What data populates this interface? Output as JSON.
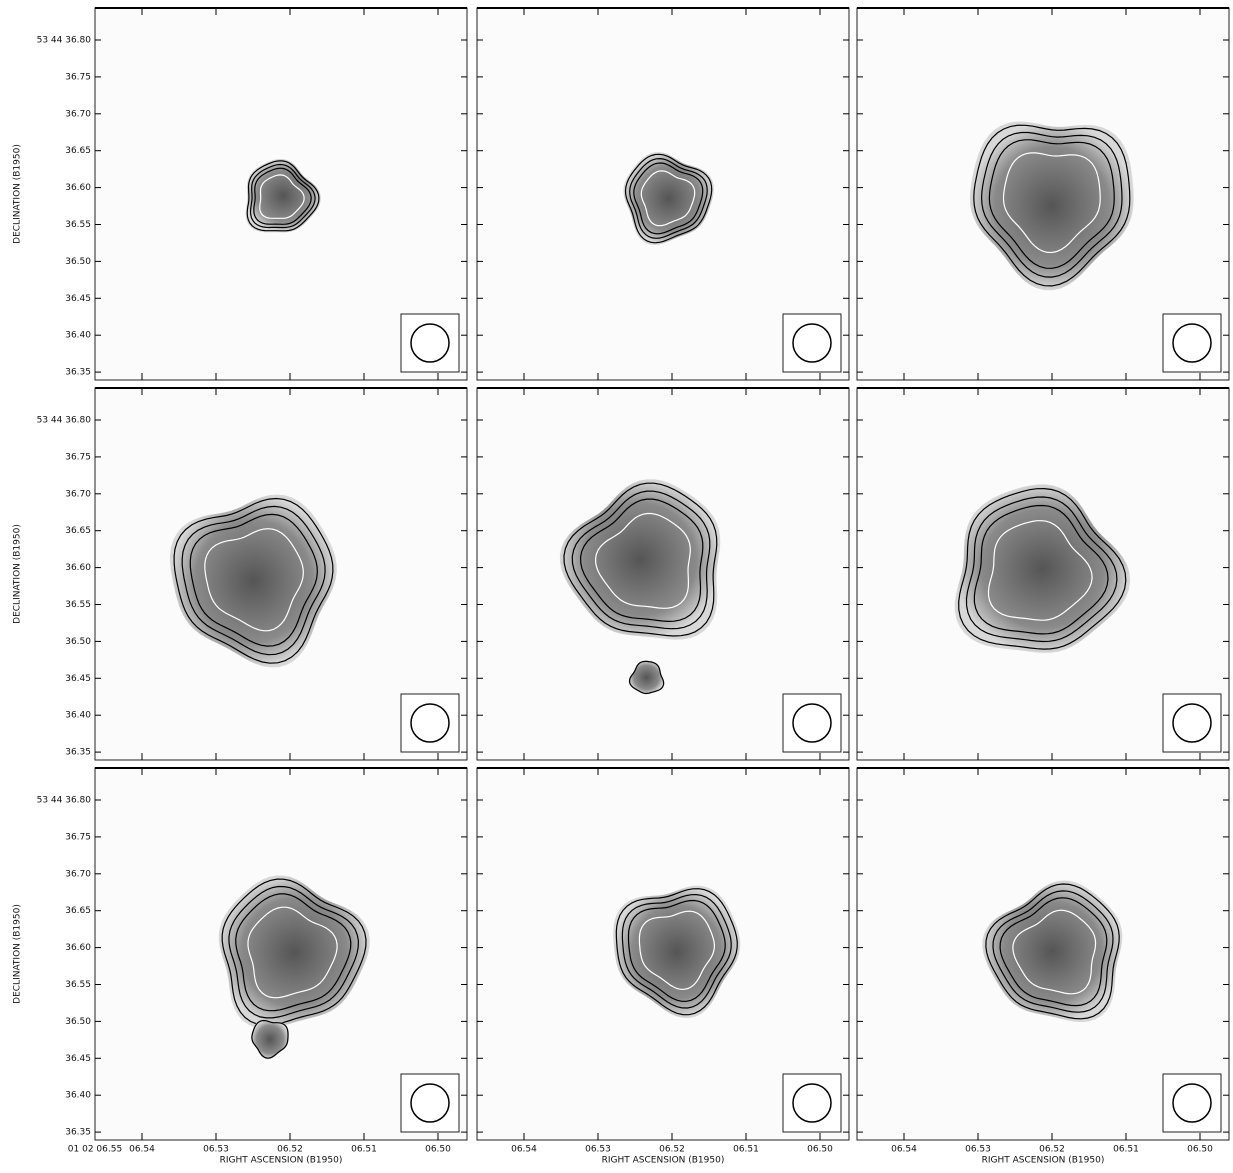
{
  "y_axis": {
    "label": "DECLINATION (B1950)",
    "ticks": [
      "53 44 36.80",
      "36.75",
      "36.70",
      "36.65",
      "36.60",
      "36.55",
      "36.50",
      "36.45",
      "36.40",
      "36.35"
    ]
  },
  "x_axis": {
    "label": "RIGHT ASCENSION (B1950)",
    "first_column_ticks": [
      "01 02 06.55",
      "06.54",
      "06.53",
      "06.52",
      "06.51",
      "06.50"
    ],
    "ticks": [
      "06.54",
      "06.53",
      "06.52",
      "06.51",
      "06.50"
    ]
  }
}
